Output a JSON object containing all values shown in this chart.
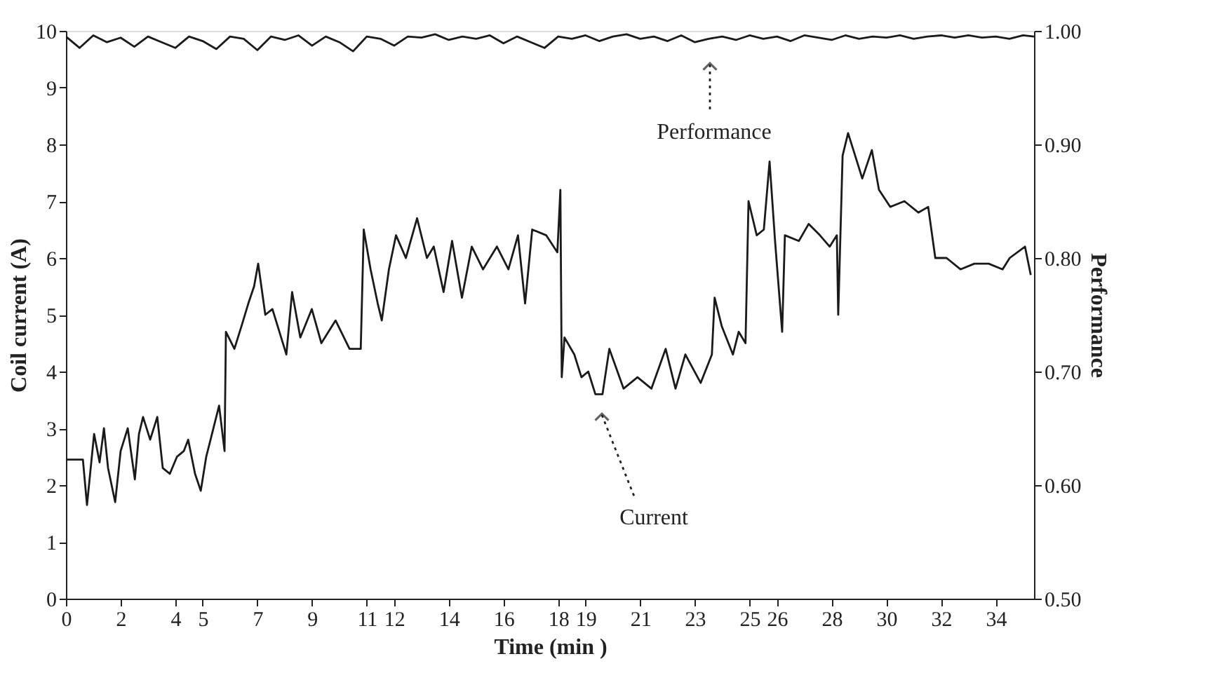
{
  "chart_data": {
    "type": "line",
    "xlabel": "Time (min )",
    "ylabel": "Coil current (A)",
    "y2label": "Performance",
    "xlim": [
      0,
      35.4
    ],
    "xticks": [
      0,
      2,
      4,
      5,
      7,
      9,
      11,
      12,
      14,
      16,
      18,
      19,
      21,
      23,
      25,
      26,
      28,
      30,
      32,
      34
    ],
    "ylim": [
      0,
      10
    ],
    "yticks": [
      0,
      1,
      2,
      3,
      4,
      5,
      6,
      7,
      8,
      9,
      10
    ],
    "y2lim": [
      0.5,
      1.0
    ],
    "y2ticks": [
      {
        "value": 0.5,
        "label": "0.50"
      },
      {
        "value": 0.6,
        "label": "0.60"
      },
      {
        "value": 0.7,
        "label": "0.70"
      },
      {
        "value": 0.8,
        "label": "0.80"
      },
      {
        "value": 0.9,
        "label": "0.90"
      },
      {
        "value": 1.0,
        "label": "1.00"
      }
    ],
    "grid": false,
    "marker": "none",
    "line_style": "solid",
    "series": [
      {
        "color": "#1a1a1a",
        "x": [
          0,
          0.62,
          0.77,
          1.03,
          1.23,
          1.39,
          1.54,
          1.8,
          2.0,
          2.26,
          2.52,
          2.67,
          2.82,
          3.08,
          3.34,
          3.54,
          3.8,
          4.06,
          4.31,
          4.47,
          4.72,
          4.93,
          5.13,
          5.34,
          5.6,
          5.8,
          5.85,
          6.16,
          6.42,
          6.67,
          6.88,
          7.03,
          7.29,
          7.55,
          8.06,
          8.27,
          8.57,
          8.99,
          9.34,
          9.86,
          10.37,
          10.78,
          10.89,
          11.14,
          11.4,
          11.55,
          11.81,
          12.07,
          12.43,
          12.84,
          13.2,
          13.45,
          13.81,
          14.12,
          14.48,
          14.84,
          15.25,
          15.76,
          16.18,
          16.53,
          16.79,
          17.05,
          17.56,
          17.97,
          18.08,
          18.13,
          18.23,
          18.59,
          18.85,
          19.1,
          19.36,
          19.62,
          19.87,
          20.39,
          20.9,
          21.41,
          21.93,
          22.29,
          22.65,
          23.21,
          23.62,
          23.72,
          23.98,
          24.39,
          24.6,
          24.85,
          24.96,
          25.26,
          25.52,
          25.73,
          25.93,
          26.19,
          26.29,
          26.8,
          27.16,
          27.57,
          27.93,
          28.19,
          28.24,
          28.4,
          28.6,
          28.86,
          29.12,
          29.47,
          29.73,
          30.14,
          30.66,
          31.17,
          31.53,
          31.79,
          32.2,
          32.71,
          33.22,
          33.74,
          34.25,
          34.51,
          35.07,
          35.28
        ],
        "values": [
          2.45,
          2.45,
          1.65,
          2.9,
          2.4,
          3.0,
          2.3,
          1.7,
          2.6,
          3.0,
          2.1,
          2.9,
          3.2,
          2.8,
          3.2,
          2.3,
          2.2,
          2.5,
          2.6,
          2.8,
          2.2,
          1.9,
          2.5,
          2.9,
          3.4,
          2.6,
          4.7,
          4.4,
          4.8,
          5.2,
          5.5,
          5.9,
          5.0,
          5.1,
          4.3,
          5.4,
          4.6,
          5.1,
          4.5,
          4.9,
          4.4,
          4.4,
          6.5,
          5.8,
          5.2,
          4.9,
          5.8,
          6.4,
          6.0,
          6.7,
          6.0,
          6.2,
          5.4,
          6.3,
          5.3,
          6.2,
          5.8,
          6.2,
          5.8,
          6.4,
          5.2,
          6.5,
          6.4,
          6.1,
          7.2,
          3.9,
          4.6,
          4.3,
          3.9,
          4.0,
          3.6,
          3.6,
          4.4,
          3.7,
          3.9,
          3.7,
          4.4,
          3.7,
          4.3,
          3.8,
          4.3,
          5.3,
          4.8,
          4.3,
          4.7,
          4.5,
          7.0,
          6.4,
          6.5,
          7.7,
          6.3,
          4.7,
          6.4,
          6.3,
          6.6,
          6.4,
          6.2,
          6.4,
          5.0,
          7.8,
          8.2,
          7.8,
          7.4,
          7.9,
          7.2,
          6.9,
          7.0,
          6.8,
          6.9,
          6.0,
          6.0,
          5.8,
          5.9,
          5.9,
          5.8,
          6.0,
          6.2,
          5.7
        ]
      },
      {
        "color": "#1a1a1a",
        "axis": "y2",
        "x": [
          0,
          0.5,
          1.0,
          1.5,
          2.0,
          2.5,
          3.0,
          3.5,
          4.0,
          4.5,
          5.0,
          5.5,
          6.0,
          6.5,
          7.0,
          7.5,
          8.0,
          8.5,
          9.0,
          9.5,
          10.0,
          10.5,
          11.0,
          11.5,
          12.0,
          12.5,
          13.0,
          13.5,
          14.0,
          14.5,
          15.0,
          15.5,
          16.0,
          16.5,
          17.0,
          17.5,
          18.0,
          18.5,
          19.0,
          19.5,
          20.0,
          20.5,
          21.0,
          21.5,
          22.0,
          22.5,
          23.0,
          23.5,
          24.0,
          24.5,
          25.0,
          25.5,
          26.0,
          26.5,
          27.0,
          27.5,
          28.0,
          28.5,
          29.0,
          29.5,
          30.0,
          30.5,
          31.0,
          31.5,
          32.0,
          32.5,
          33.0,
          33.5,
          34.0,
          34.5,
          35.0,
          35.4
        ],
        "values": [
          0.995,
          0.985,
          0.996,
          0.99,
          0.994,
          0.986,
          0.995,
          0.99,
          0.985,
          0.995,
          0.991,
          0.984,
          0.995,
          0.993,
          0.983,
          0.995,
          0.992,
          0.996,
          0.987,
          0.995,
          0.99,
          0.982,
          0.995,
          0.993,
          0.987,
          0.995,
          0.994,
          0.997,
          0.992,
          0.995,
          0.993,
          0.996,
          0.989,
          0.995,
          0.99,
          0.985,
          0.995,
          0.993,
          0.996,
          0.991,
          0.995,
          0.997,
          0.993,
          0.995,
          0.991,
          0.996,
          0.99,
          0.993,
          0.995,
          0.992,
          0.996,
          0.993,
          0.995,
          0.991,
          0.996,
          0.994,
          0.992,
          0.996,
          0.993,
          0.995,
          0.994,
          0.996,
          0.993,
          0.995,
          0.996,
          0.994,
          0.996,
          0.994,
          0.995,
          0.993,
          0.996,
          0.995
        ]
      }
    ],
    "annotations": [
      "Performance",
      "Current"
    ]
  }
}
